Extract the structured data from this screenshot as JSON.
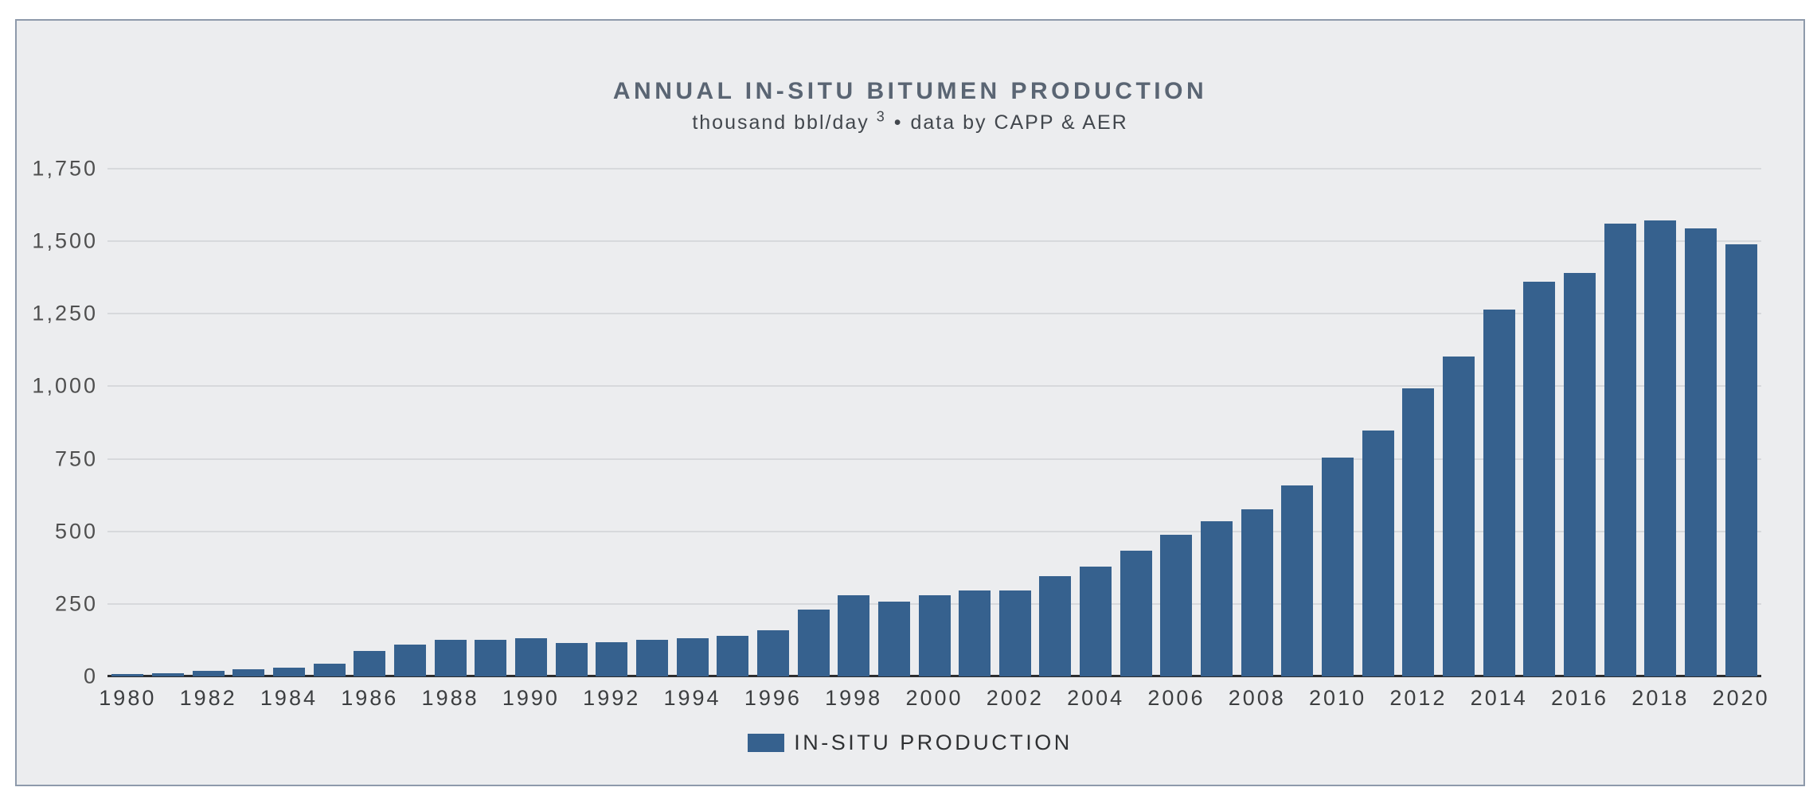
{
  "header": {
    "title": "ANNUAL IN-SITU BITUMEN PRODUCTION",
    "subtitle": {
      "unit_text": "thousand bbl/day",
      "footnote_marker": "3",
      "separator": "•",
      "source_text": "data by CAPP & AER"
    }
  },
  "legend": {
    "label": "IN-SITU PRODUCTION"
  },
  "colors": {
    "bar": "#36618e",
    "chart_background": "#ecedef",
    "frame_border": "#8e9aab",
    "gridline": "#d7d9dc",
    "axis_baseline": "#2c2d2f",
    "title_text": "#5a6573",
    "subtitle_text": "#42474d",
    "tick_text": "#4f4f4f"
  },
  "chart_data": {
    "type": "bar",
    "title": "ANNUAL IN-SITU BITUMEN PRODUCTION",
    "subtitle": "thousand bbl/day ³ • data by CAPP & AER",
    "ylabel": "thousand bbl/day",
    "xlabel": "",
    "ylim": [
      0,
      1750
    ],
    "ytick_step": 250,
    "ytick_labels": [
      "0",
      "250",
      "500",
      "750",
      "1,000",
      "1,250",
      "1,500",
      "1,750"
    ],
    "xtick_labels": [
      "1980",
      "1982",
      "1984",
      "1986",
      "1988",
      "1990",
      "1992",
      "1994",
      "1996",
      "1998",
      "2000",
      "2002",
      "2004",
      "2006",
      "2008",
      "2010",
      "2012",
      "2014",
      "2016",
      "2018",
      "2020"
    ],
    "grid": true,
    "legend_position": "bottom",
    "x": [
      1980,
      1981,
      1982,
      1983,
      1984,
      1985,
      1986,
      1987,
      1988,
      1989,
      1990,
      1991,
      1992,
      1993,
      1994,
      1995,
      1996,
      1997,
      1998,
      1999,
      2000,
      2001,
      2002,
      2003,
      2004,
      2005,
      2006,
      2007,
      2008,
      2009,
      2010,
      2011,
      2012,
      2013,
      2014,
      2015,
      2016,
      2017,
      2018,
      2019,
      2020
    ],
    "series": [
      {
        "name": "IN-SITU PRODUCTION",
        "values": [
          8,
          12,
          19,
          25,
          29,
          45,
          87,
          111,
          126,
          127,
          133,
          114,
          119,
          126,
          132,
          141,
          158,
          231,
          279,
          258,
          279,
          296,
          296,
          346,
          379,
          433,
          487,
          534,
          576,
          659,
          753,
          848,
          993,
          1104,
          1264,
          1361,
          1390,
          1560,
          1573,
          1544,
          1490
        ]
      }
    ]
  }
}
